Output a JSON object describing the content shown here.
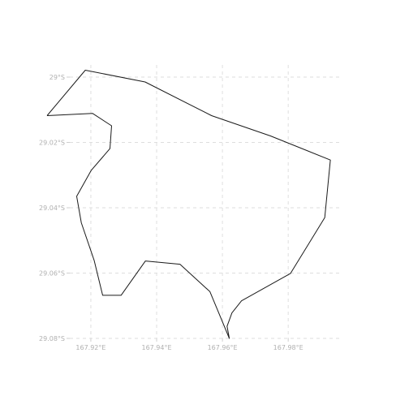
{
  "map": {
    "x_ticks": [
      {
        "lon": 167.92,
        "label": "167.92°E"
      },
      {
        "lon": 167.94,
        "label": "167.94°E"
      },
      {
        "lon": 167.96,
        "label": "167.96°E"
      },
      {
        "lon": 167.98,
        "label": "167.98°E"
      }
    ],
    "y_ticks": [
      {
        "lat": -29.0,
        "label": "29°S"
      },
      {
        "lat": -29.02,
        "label": "29.02°S"
      },
      {
        "lat": -29.04,
        "label": "29.04°S"
      },
      {
        "lat": -29.06,
        "label": "29.06°S"
      },
      {
        "lat": -29.08,
        "label": "29.08°S"
      }
    ],
    "lon_range": [
      167.9136,
      167.9955
    ],
    "lat_range": [
      -29.08,
      -29.0
    ],
    "outline_color": "#1a1a1a",
    "outline": [
      [
        167.9067,
        -29.0118
      ],
      [
        167.9183,
        -28.9979
      ],
      [
        167.9365,
        -29.0015
      ],
      [
        167.9567,
        -29.0118
      ],
      [
        167.9746,
        -29.018
      ],
      [
        167.9928,
        -29.0254
      ],
      [
        167.9911,
        -29.043
      ],
      [
        167.9807,
        -29.0601
      ],
      [
        167.9658,
        -29.0685
      ],
      [
        167.9629,
        -29.0722
      ],
      [
        167.9614,
        -29.0763
      ],
      [
        167.9621,
        -29.08
      ],
      [
        167.9562,
        -29.0657
      ],
      [
        167.9471,
        -29.0573
      ],
      [
        167.9366,
        -29.0563
      ],
      [
        167.9292,
        -29.0668
      ],
      [
        167.9236,
        -29.0668
      ],
      [
        167.921,
        -29.0561
      ],
      [
        167.9171,
        -29.0446
      ],
      [
        167.9157,
        -29.0365
      ],
      [
        167.9201,
        -29.0286
      ],
      [
        167.9258,
        -29.0219
      ],
      [
        167.9263,
        -29.0149
      ],
      [
        167.9205,
        -29.0111
      ],
      [
        167.9067,
        -29.0118
      ]
    ]
  }
}
